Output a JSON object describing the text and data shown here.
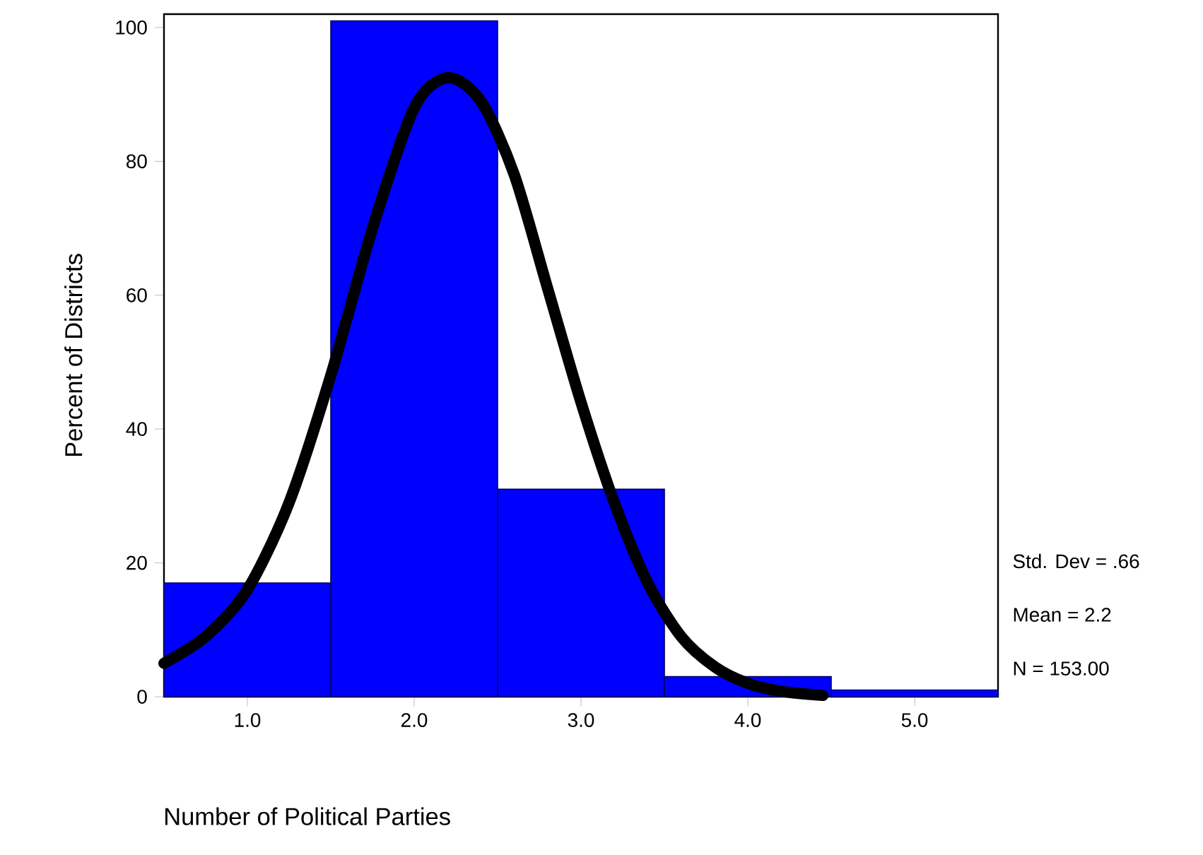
{
  "chart_data": {
    "type": "histogram",
    "xlabel": "Number of Political Parties",
    "ylabel": "Percent of Districts",
    "bins": [
      0.5,
      1.5,
      2.5,
      3.5,
      4.5,
      5.5
    ],
    "values": [
      17,
      101,
      31,
      3,
      1
    ],
    "color": "#0000ff",
    "series": [
      {
        "type": "line",
        "color": "#000000",
        "x": [
          0.5,
          0.75,
          1.0,
          1.25,
          1.5,
          1.75,
          2.0,
          2.2,
          2.4,
          2.6,
          2.8,
          3.0,
          3.2,
          3.4,
          3.6,
          3.8,
          4.0,
          4.2,
          4.45
        ],
        "values": [
          5,
          9,
          16,
          29,
          48,
          70,
          88,
          92.5,
          89,
          78,
          61,
          44,
          29,
          17,
          9,
          4.5,
          2,
          0.8,
          0.2
        ]
      }
    ],
    "xlim": [
      0.5,
      5.5
    ],
    "ylim": [
      0,
      102
    ],
    "xticks": [
      {
        "value": 1,
        "label": "1.0"
      },
      {
        "value": 2,
        "label": "2.0"
      },
      {
        "value": 3,
        "label": "3.0"
      },
      {
        "value": 4,
        "label": "4.0"
      },
      {
        "value": 5,
        "label": "5.0"
      }
    ],
    "yticks": [
      0,
      20,
      40,
      60,
      80,
      100
    ],
    "grid": false,
    "annotations": [
      "Std. Dev = .66",
      "Mean = 2.2",
      "N = 153.00"
    ]
  }
}
